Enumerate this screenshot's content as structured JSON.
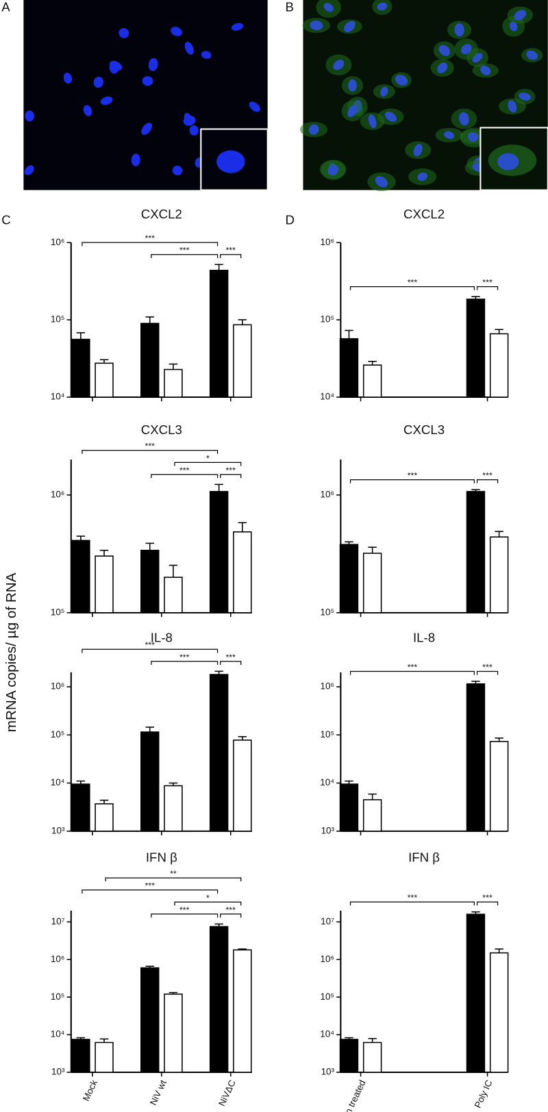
{
  "panel_labels": [
    "A",
    "B",
    "C",
    "D"
  ],
  "y_axis_label": "mRNA copies/ µg of RNA",
  "chart_data": [
    {
      "type": "bar",
      "title": "CXCL2",
      "log": true,
      "categories": [
        null,
        null,
        null
      ],
      "series": [
        {
          "color": "#000000",
          "values": [
            56000,
            90000,
            437000
          ],
          "errors": [
            12000,
            19000,
            83000
          ]
        },
        {
          "color": "#ffffff",
          "values": [
            27500,
            22800,
            86300
          ],
          "errors": [
            3000,
            4000,
            14000
          ]
        }
      ],
      "ylim": [
        10000,
        1000000
      ],
      "yticks": [
        {
          "value": 10000,
          "label": "10⁴"
        },
        {
          "value": 100000,
          "label": "10⁵"
        },
        {
          "value": 1000000,
          "label": "10⁶"
        }
      ],
      "annotations": [
        {
          "label": "***",
          "from": [
            0,
            0
          ],
          "to": [
            2,
            0
          ]
        },
        {
          "label": "***",
          "from": [
            1,
            0
          ],
          "to": [
            2,
            0
          ]
        },
        {
          "label": "***",
          "from": [
            2,
            0
          ],
          "to": [
            2,
            1
          ]
        }
      ]
    },
    {
      "type": "bar",
      "title": "CXCL3",
      "log": true,
      "categories": [
        null,
        null,
        null
      ],
      "series": [
        {
          "color": "#000000",
          "values": [
            411000,
            339000,
            1070000
          ],
          "errors": [
            36000,
            50000,
            160000
          ]
        },
        {
          "color": "#ffffff",
          "values": [
            303000,
            200000,
            486000
          ],
          "errors": [
            36000,
            53000,
            96000
          ]
        }
      ],
      "ylim": [
        100000,
        2000000
      ],
      "yticks": [
        {
          "value": 100000,
          "label": "10⁵"
        },
        {
          "value": 1000000,
          "label": "10⁶"
        }
      ],
      "annotations": [
        {
          "label": "***",
          "from": [
            0,
            0
          ],
          "to": [
            2,
            0
          ]
        },
        {
          "label": "***",
          "from": [
            1,
            0
          ],
          "to": [
            2,
            0
          ]
        },
        {
          "label": "***",
          "from": [
            2,
            0
          ],
          "to": [
            2,
            1
          ]
        },
        {
          "label": "*",
          "from": [
            1,
            1
          ],
          "to": [
            2,
            1
          ]
        }
      ]
    },
    {
      "type": "bar",
      "title": "IL-8",
      "log": true,
      "categories": [
        null,
        null,
        null
      ],
      "series": [
        {
          "color": "#000000",
          "values": [
            9500,
            115000,
            1800000
          ],
          "errors": [
            1500,
            30000,
            300000
          ]
        },
        {
          "color": "#ffffff",
          "values": [
            3700,
            8800,
            78000
          ],
          "errors": [
            700,
            1200,
            14000
          ]
        }
      ],
      "ylim": [
        1000,
        2000000
      ],
      "yticks": [
        {
          "value": 1000,
          "label": "10³"
        },
        {
          "value": 10000,
          "label": "10⁴"
        },
        {
          "value": 100000,
          "label": "10⁵"
        },
        {
          "value": 1000000,
          "label": "10⁶"
        }
      ],
      "annotations": [
        {
          "label": "***",
          "from": [
            0,
            0
          ],
          "to": [
            2,
            0
          ]
        },
        {
          "label": "***",
          "from": [
            1,
            0
          ],
          "to": [
            2,
            0
          ]
        },
        {
          "label": "***",
          "from": [
            2,
            0
          ],
          "to": [
            2,
            1
          ]
        }
      ]
    },
    {
      "type": "bar",
      "title": "IFN β",
      "log": true,
      "categories": [
        "Mock",
        "NiV wt",
        "NiVΔC"
      ],
      "series": [
        {
          "color": "#000000",
          "values": [
            7500,
            600000,
            7500000
          ],
          "errors": [
            800,
            60000,
            1300000
          ]
        },
        {
          "color": "#ffffff",
          "values": [
            6200,
            120000,
            1800000
          ],
          "errors": [
            1500,
            12000,
            100000
          ]
        }
      ],
      "ylim": [
        1000,
        20000000
      ],
      "yticks": [
        {
          "value": 1000,
          "label": "10³"
        },
        {
          "value": 10000,
          "label": "10⁴"
        },
        {
          "value": 100000,
          "label": "10⁵"
        },
        {
          "value": 1000000,
          "label": "10⁶"
        },
        {
          "value": 10000000,
          "label": "10⁷"
        }
      ],
      "annotations": [
        {
          "label": "***",
          "from": [
            0,
            0
          ],
          "to": [
            2,
            0
          ]
        },
        {
          "label": "***",
          "from": [
            1,
            0
          ],
          "to": [
            2,
            0
          ]
        },
        {
          "label": "***",
          "from": [
            2,
            0
          ],
          "to": [
            2,
            1
          ]
        },
        {
          "label": "**",
          "from": [
            0,
            1
          ],
          "to": [
            2,
            1
          ]
        },
        {
          "label": "*",
          "from": [
            1,
            1
          ],
          "to": [
            2,
            1
          ]
        }
      ]
    },
    {
      "type": "bar",
      "title": "CXCL2",
      "log": true,
      "categories": [
        null,
        null
      ],
      "series": [
        {
          "color": "#000000",
          "values": [
            57000,
            185000
          ],
          "errors": [
            16000,
            15000
          ]
        },
        {
          "color": "#ffffff",
          "values": [
            26000,
            66000
          ],
          "errors": [
            3000,
            9000
          ]
        }
      ],
      "ylim": [
        10000,
        1000000
      ],
      "yticks": [
        {
          "value": 10000,
          "label": "10⁴"
        },
        {
          "value": 100000,
          "label": "10⁵"
        },
        {
          "value": 1000000,
          "label": "10⁶"
        }
      ],
      "annotations": [
        {
          "label": "***",
          "from": [
            0,
            0
          ],
          "to": [
            1,
            0
          ]
        },
        {
          "label": "***",
          "from": [
            1,
            0
          ],
          "to": [
            1,
            1
          ]
        }
      ]
    },
    {
      "type": "bar",
      "title": "CXCL3",
      "log": true,
      "categories": [
        null,
        null
      ],
      "series": [
        {
          "color": "#000000",
          "values": [
            380000,
            1070000
          ],
          "errors": [
            20000,
            40000
          ]
        },
        {
          "color": "#ffffff",
          "values": [
            320000,
            440000
          ],
          "errors": [
            40000,
            50000
          ]
        }
      ],
      "ylim": [
        100000,
        2000000
      ],
      "yticks": [
        {
          "value": 100000,
          "label": "10⁵"
        },
        {
          "value": 1000000,
          "label": "10⁶"
        }
      ],
      "annotations": [
        {
          "label": "***",
          "from": [
            0,
            0
          ],
          "to": [
            1,
            0
          ]
        },
        {
          "label": "***",
          "from": [
            1,
            0
          ],
          "to": [
            1,
            1
          ]
        }
      ]
    },
    {
      "type": "bar",
      "title": "IL-8",
      "log": true,
      "categories": [
        null,
        null
      ],
      "series": [
        {
          "color": "#000000",
          "values": [
            9500,
            1150000
          ],
          "errors": [
            1500,
            150000
          ]
        },
        {
          "color": "#ffffff",
          "values": [
            4500,
            73000
          ],
          "errors": [
            1400,
            13000
          ]
        }
      ],
      "ylim": [
        1000,
        2000000
      ],
      "yticks": [
        {
          "value": 1000,
          "label": "10³"
        },
        {
          "value": 10000,
          "label": "10⁴"
        },
        {
          "value": 100000,
          "label": "10⁵"
        },
        {
          "value": 1000000,
          "label": "10⁶"
        }
      ],
      "annotations": [
        {
          "label": "***",
          "from": [
            0,
            0
          ],
          "to": [
            1,
            0
          ]
        },
        {
          "label": "***",
          "from": [
            1,
            0
          ],
          "to": [
            1,
            1
          ]
        }
      ]
    },
    {
      "type": "bar",
      "title": "IFN β",
      "log": true,
      "categories": [
        "Non treated",
        "Poly IC"
      ],
      "series": [
        {
          "color": "#000000",
          "values": [
            7500,
            16000000
          ],
          "errors": [
            800,
            2500000
          ]
        },
        {
          "color": "#ffffff",
          "values": [
            6200,
            1500000
          ],
          "errors": [
            1700,
            400000
          ]
        }
      ],
      "ylim": [
        1000,
        20000000
      ],
      "yticks": [
        {
          "value": 1000,
          "label": "10³"
        },
        {
          "value": 10000,
          "label": "10⁴"
        },
        {
          "value": 100000,
          "label": "10⁵"
        },
        {
          "value": 1000000,
          "label": "10⁶"
        },
        {
          "value": 10000000,
          "label": "10⁷"
        }
      ],
      "annotations": [
        {
          "label": "***",
          "from": [
            0,
            0
          ],
          "to": [
            1,
            0
          ]
        },
        {
          "label": "***",
          "from": [
            1,
            0
          ],
          "to": [
            1,
            1
          ]
        }
      ]
    }
  ]
}
